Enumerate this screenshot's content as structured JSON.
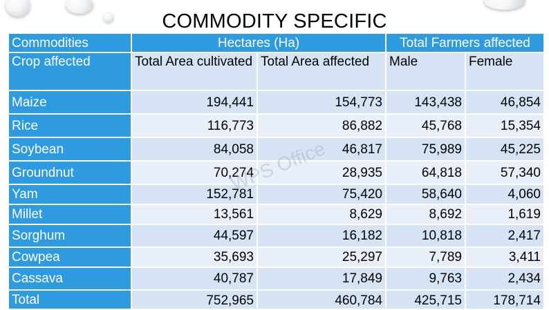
{
  "title": "COMMODITY SPECIFIC",
  "watermark": "WPS Office",
  "header": {
    "commodities": "Commodities",
    "hectares": "Hectares (Ha)",
    "total_farmers": "Total Farmers affected",
    "crop_affected": "Crop affected",
    "total_area_cultivated": "Total Area cultivated",
    "total_area_affected": "Total Area affected",
    "male": "Male",
    "female": "Female"
  },
  "rows": [
    {
      "crop": "Maize",
      "cultivated": "194,441",
      "affected": "154,773",
      "male": "143,438",
      "female": "46,854"
    },
    {
      "crop": "Rice",
      "cultivated": "116,773",
      "affected": "86,882",
      "male": "45,768",
      "female": "15,354"
    },
    {
      "crop": "Soybean",
      "cultivated": "84,058",
      "affected": "46,817",
      "male": "75,989",
      "female": "45,225"
    },
    {
      "crop": "Groundnut",
      "cultivated": "70,274",
      "affected": "28,935",
      "male": "64,818",
      "female": "57,340"
    },
    {
      "crop": "Yam",
      "cultivated": "152,781",
      "affected": "75,420",
      "male": "58,640",
      "female": "4,060"
    },
    {
      "crop": "Millet",
      "cultivated": "13,561",
      "affected": "8,629",
      "male": "8,692",
      "female": "1,619"
    },
    {
      "crop": "Sorghum",
      "cultivated": "44,597",
      "affected": "16,182",
      "male": "10,818",
      "female": "2,417"
    },
    {
      "crop": "Cowpea",
      "cultivated": "35,693",
      "affected": "25,297",
      "male": "7,789",
      "female": "3,411"
    },
    {
      "crop": "Cassava",
      "cultivated": "40,787",
      "affected": "17,849",
      "male": "9,763",
      "female": "2,434"
    }
  ],
  "total": {
    "crop": "Total",
    "cultivated": "752,965",
    "affected": "460,784",
    "male": "425,715",
    "female": "178,714"
  }
}
